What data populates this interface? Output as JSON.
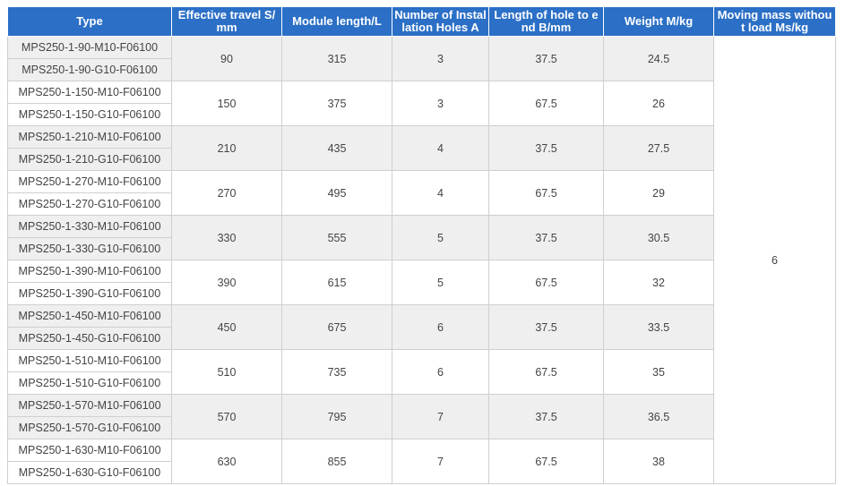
{
  "headers": {
    "type": "Type",
    "travel": "Effective travel S/mm",
    "length": "Module length/L",
    "holes": "Number of Installation Holes A",
    "hole_end": "Length of hole to end B/mm",
    "weight": "Weight M/kg",
    "moving_mass": "Moving mass without load Ms/kg"
  },
  "moving_mass": "6",
  "groups": [
    {
      "types": [
        "MPS250-1-90-M10-F06100",
        "MPS250-1-90-G10-F06100"
      ],
      "travel": "90",
      "length": "315",
      "holes": "3",
      "hole_end": "37.5",
      "weight": "24.5"
    },
    {
      "types": [
        "MPS250-1-150-M10-F06100",
        "MPS250-1-150-G10-F06100"
      ],
      "travel": "150",
      "length": "375",
      "holes": "3",
      "hole_end": "67.5",
      "weight": "26"
    },
    {
      "types": [
        "MPS250-1-210-M10-F06100",
        "MPS250-1-210-G10-F06100"
      ],
      "travel": "210",
      "length": "435",
      "holes": "4",
      "hole_end": "37.5",
      "weight": "27.5"
    },
    {
      "types": [
        "MPS250-1-270-M10-F06100",
        "MPS250-1-270-G10-F06100"
      ],
      "travel": "270",
      "length": "495",
      "holes": "4",
      "hole_end": "67.5",
      "weight": "29"
    },
    {
      "types": [
        "MPS250-1-330-M10-F06100",
        "MPS250-1-330-G10-F06100"
      ],
      "travel": "330",
      "length": "555",
      "holes": "5",
      "hole_end": "37.5",
      "weight": "30.5"
    },
    {
      "types": [
        "MPS250-1-390-M10-F06100",
        "MPS250-1-390-G10-F06100"
      ],
      "travel": "390",
      "length": "615",
      "holes": "5",
      "hole_end": "67.5",
      "weight": "32"
    },
    {
      "types": [
        "MPS250-1-450-M10-F06100",
        "MPS250-1-450-G10-F06100"
      ],
      "travel": "450",
      "length": "675",
      "holes": "6",
      "hole_end": "37.5",
      "weight": "33.5"
    },
    {
      "types": [
        "MPS250-1-510-M10-F06100",
        "MPS250-1-510-G10-F06100"
      ],
      "travel": "510",
      "length": "735",
      "holes": "6",
      "hole_end": "67.5",
      "weight": "35"
    },
    {
      "types": [
        "MPS250-1-570-M10-F06100",
        "MPS250-1-570-G10-F06100"
      ],
      "travel": "570",
      "length": "795",
      "holes": "7",
      "hole_end": "37.5",
      "weight": "36.5"
    },
    {
      "types": [
        "MPS250-1-630-M10-F06100",
        "MPS250-1-630-G10-F06100"
      ],
      "travel": "630",
      "length": "855",
      "holes": "7",
      "hole_end": "67.5",
      "weight": "38"
    }
  ],
  "colors": {
    "header_bg": "#2b6fc6",
    "header_text": "#ffffff",
    "shade_row": "#efefef",
    "border": "#cfcfcf"
  }
}
